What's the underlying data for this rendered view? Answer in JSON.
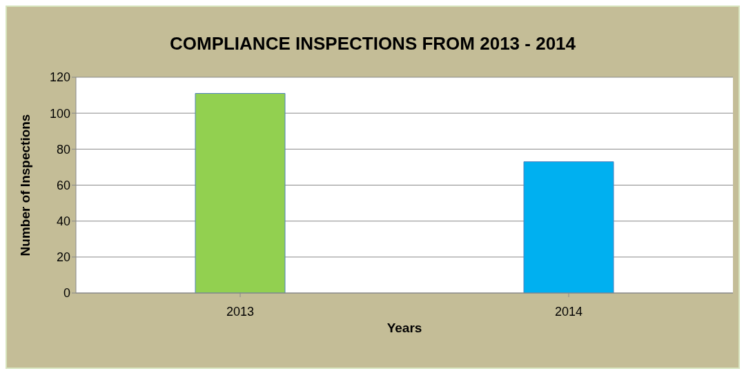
{
  "chart_data": {
    "type": "bar",
    "title": "COMPLIANCE INSPECTIONS FROM 2013 - 2014",
    "xlabel": "Years",
    "ylabel": "Number of Inspections",
    "categories": [
      "2013",
      "2014"
    ],
    "values": [
      111,
      73
    ],
    "colors": [
      "#92d050",
      "#00b0f0"
    ],
    "ylim": [
      0,
      120
    ],
    "yticks": [
      0,
      20,
      40,
      60,
      80,
      100,
      120
    ],
    "grid": "y"
  }
}
